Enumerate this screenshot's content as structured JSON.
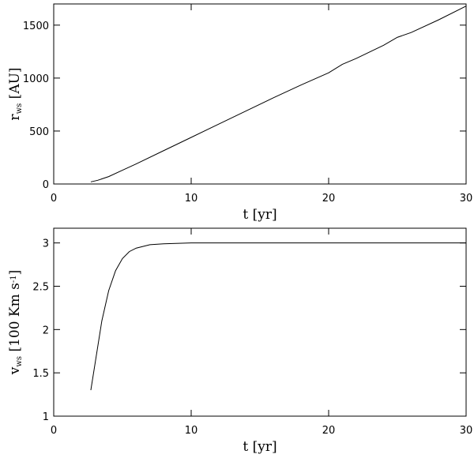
{
  "chart_data": [
    {
      "type": "line",
      "xlabel": "t [yr]",
      "ylabel": [
        {
          "text": "r"
        },
        {
          "text": "ws",
          "style": "sub"
        },
        {
          "text": " [AU]"
        }
      ],
      "xlim": [
        0,
        30
      ],
      "ylim": [
        0,
        1700
      ],
      "xticks": [
        0,
        10,
        20,
        30
      ],
      "yticks": [
        0,
        500,
        1000,
        1500
      ],
      "series": [
        {
          "color": "#000000",
          "x": [
            2.7,
            3.2,
            4,
            5,
            6,
            8,
            10,
            12,
            14,
            16,
            18,
            20,
            21,
            22,
            24,
            25,
            26,
            28,
            30
          ],
          "values": [
            20,
            35,
            70,
            130,
            190,
            315,
            440,
            565,
            690,
            815,
            935,
            1050,
            1130,
            1185,
            1310,
            1385,
            1430,
            1550,
            1680
          ]
        }
      ]
    },
    {
      "type": "line",
      "xlabel": "t [yr]",
      "ylabel": [
        {
          "text": "v"
        },
        {
          "text": "ws",
          "style": "sub"
        },
        {
          "text": " [100 Km s"
        },
        {
          "text": "-1",
          "style": "sup"
        },
        {
          "text": "]"
        }
      ],
      "xlim": [
        0,
        30
      ],
      "ylim": [
        1,
        3.17
      ],
      "xticks": [
        0,
        10,
        20,
        30
      ],
      "yticks": [
        1,
        1.5,
        2,
        2.5,
        3
      ],
      "series": [
        {
          "color": "#000000",
          "x": [
            2.7,
            3,
            3.5,
            4,
            4.5,
            5,
            5.5,
            6,
            7,
            8,
            10,
            15,
            20,
            25,
            30
          ],
          "values": [
            1.3,
            1.6,
            2.1,
            2.45,
            2.68,
            2.82,
            2.9,
            2.94,
            2.98,
            2.99,
            3.0,
            3.0,
            3.0,
            3.0,
            3.0
          ]
        }
      ]
    }
  ]
}
